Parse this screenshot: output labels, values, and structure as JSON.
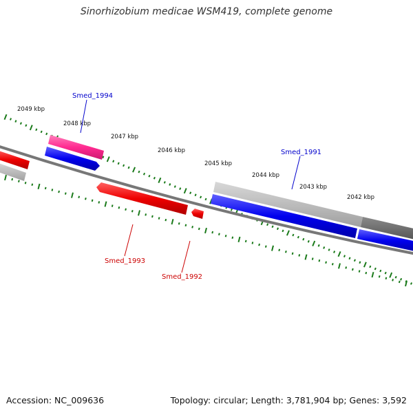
{
  "title": "Sinorhizobium medicae WSM419, complete genome",
  "accession": "Accession: NC_009636",
  "summary": "Topology: circular; Length: 3,781,904 bp; Genes: 3,592",
  "colors": {
    "backbone": "#777777",
    "ticks": "#1a7a1a",
    "forward_gene": "#0000ee",
    "reverse_gene": "#ee0000",
    "highlight_gene": "#ff3399",
    "gray_feature": "#b0b0b0",
    "dark_feature": "#606060"
  },
  "scale_labels": [
    "2049 kbp",
    "2048 kbp",
    "2047 kbp",
    "2046 kbp",
    "2045 kbp",
    "2044 kbp",
    "2043 kbp",
    "2042 kbp"
  ],
  "genes": [
    {
      "name": "Smed_1994",
      "strand": "forward",
      "color": "#0000cc"
    },
    {
      "name": "Smed_1991",
      "strand": "forward",
      "color": "#0000cc"
    },
    {
      "name": "Smed_1993",
      "strand": "reverse",
      "color": "#cc0000"
    },
    {
      "name": "Smed_1992",
      "strand": "reverse",
      "color": "#cc0000"
    }
  ]
}
